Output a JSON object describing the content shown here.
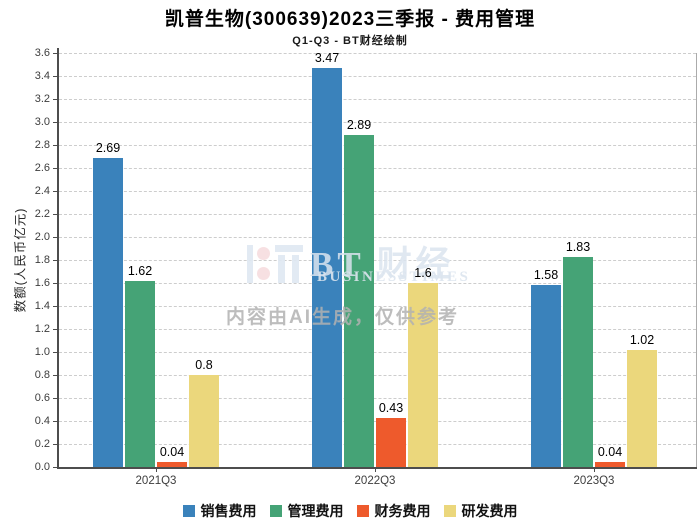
{
  "title": "凯普生物(300639)2023三季报 - 费用管理",
  "subtitle": "Q1-Q3 - BT财经绘制",
  "chart_data": {
    "type": "bar",
    "categories": [
      "2021Q3",
      "2022Q3",
      "2023Q3"
    ],
    "series": [
      {
        "name": "销售费用",
        "color": "#3a82bb",
        "values": [
          2.69,
          3.47,
          1.58
        ]
      },
      {
        "name": "管理费用",
        "color": "#45a376",
        "values": [
          1.62,
          2.89,
          1.83
        ]
      },
      {
        "name": "财务费用",
        "color": "#ee5a2c",
        "values": [
          0.04,
          0.43,
          0.04
        ]
      },
      {
        "name": "研发费用",
        "color": "#ebd77c",
        "values": [
          0.8,
          1.6,
          1.02
        ]
      }
    ],
    "value_labels": [
      [
        "2.69",
        "3.47",
        "1.58"
      ],
      [
        "1.62",
        "2.89",
        "1.83"
      ],
      [
        "0.04",
        "0.43",
        "0.04"
      ],
      [
        "0.8",
        "1.6",
        "1.02"
      ]
    ],
    "ylabel": "数额(人民币亿元)",
    "ylim": [
      0,
      3.6
    ],
    "ytick_step": 0.2,
    "yticks": [
      "0.0",
      "0.2",
      "0.4",
      "0.6",
      "0.8",
      "1.0",
      "1.2",
      "1.4",
      "1.6",
      "1.8",
      "2.0",
      "2.2",
      "2.4",
      "2.6",
      "2.8",
      "3.0",
      "3.2",
      "3.4",
      "3.6"
    ],
    "grid": true,
    "legend_position": "bottom"
  },
  "watermark": {
    "brand": "BT 财经",
    "brand_sub": "BUSINESSTIMES",
    "disclaimer": "内容由AI生成，仅供参考"
  },
  "colors": {
    "axis": "#4d4d4d",
    "grid": "#cdcdcd",
    "plot_border": "#ababab",
    "label_text": "#000000"
  }
}
